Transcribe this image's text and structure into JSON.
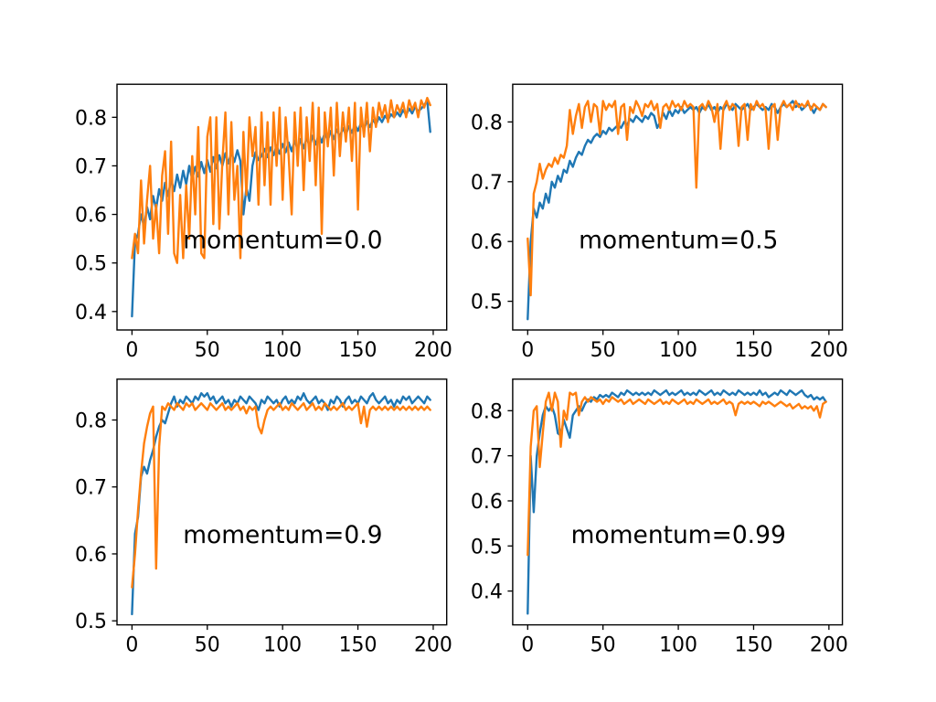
{
  "figure": {
    "background": "#ffffff",
    "axis_color": "#000000"
  },
  "chart_data": [
    {
      "type": "line",
      "annotation": "momentum=0.0",
      "xlabel": "",
      "ylabel": "",
      "xlim": [
        -9.95,
        208.95
      ],
      "ylim": [
        0.362,
        0.868
      ],
      "xticks": [
        0,
        50,
        100,
        150,
        200
      ],
      "yticks": [
        0.4,
        0.5,
        0.6,
        0.7,
        0.8
      ],
      "x_start": 0,
      "x_step": 2,
      "grid": false,
      "legend": "none",
      "series": [
        {
          "id": "line1",
          "color": "#1f77b4",
          "values": [
            0.39,
            0.545,
            0.56,
            0.6,
            0.575,
            0.615,
            0.59,
            0.638,
            0.612,
            0.652,
            0.628,
            0.665,
            0.638,
            0.672,
            0.648,
            0.682,
            0.655,
            0.69,
            0.662,
            0.7,
            0.672,
            0.698,
            0.678,
            0.708,
            0.685,
            0.712,
            0.688,
            0.718,
            0.695,
            0.722,
            0.7,
            0.726,
            0.705,
            0.728,
            0.708,
            0.732,
            0.71,
            0.6,
            0.655,
            0.628,
            0.7,
            0.728,
            0.712,
            0.72,
            0.735,
            0.718,
            0.738,
            0.722,
            0.742,
            0.725,
            0.745,
            0.728,
            0.748,
            0.73,
            0.752,
            0.733,
            0.755,
            0.736,
            0.758,
            0.74,
            0.762,
            0.744,
            0.765,
            0.748,
            0.768,
            0.752,
            0.772,
            0.755,
            0.775,
            0.76,
            0.778,
            0.764,
            0.782,
            0.768,
            0.785,
            0.772,
            0.788,
            0.775,
            0.792,
            0.78,
            0.795,
            0.785,
            0.8,
            0.79,
            0.803,
            0.795,
            0.806,
            0.8,
            0.81,
            0.802,
            0.815,
            0.805,
            0.818,
            0.808,
            0.822,
            0.812,
            0.818,
            0.825,
            0.835,
            0.77
          ]
        },
        {
          "id": "line2",
          "color": "#ff7f0e",
          "values": [
            0.51,
            0.56,
            0.52,
            0.67,
            0.54,
            0.63,
            0.7,
            0.55,
            0.62,
            0.52,
            0.68,
            0.73,
            0.56,
            0.75,
            0.52,
            0.5,
            0.64,
            0.51,
            0.66,
            0.55,
            0.72,
            0.6,
            0.78,
            0.52,
            0.51,
            0.76,
            0.8,
            0.58,
            0.8,
            0.57,
            0.71,
            0.81,
            0.6,
            0.79,
            0.63,
            0.7,
            0.51,
            0.77,
            0.64,
            0.8,
            0.72,
            0.78,
            0.62,
            0.81,
            0.66,
            0.79,
            0.62,
            0.81,
            0.7,
            0.82,
            0.63,
            0.8,
            0.72,
            0.6,
            0.81,
            0.7,
            0.82,
            0.65,
            0.8,
            0.71,
            0.83,
            0.66,
            0.82,
            0.56,
            0.81,
            0.74,
            0.82,
            0.68,
            0.83,
            0.72,
            0.81,
            0.75,
            0.82,
            0.71,
            0.83,
            0.61,
            0.82,
            0.76,
            0.83,
            0.73,
            0.82,
            0.78,
            0.83,
            0.8,
            0.825,
            0.79,
            0.835,
            0.8,
            0.825,
            0.81,
            0.83,
            0.8,
            0.835,
            0.815,
            0.83,
            0.8,
            0.835,
            0.82,
            0.84,
            0.825
          ]
        }
      ]
    },
    {
      "type": "line",
      "annotation": "momentum=0.5",
      "xlabel": "",
      "ylabel": "",
      "xlim": [
        -9.95,
        208.95
      ],
      "ylim": [
        0.452,
        0.863
      ],
      "xticks": [
        0,
        50,
        100,
        150,
        200
      ],
      "yticks": [
        0.5,
        0.6,
        0.7,
        0.8
      ],
      "x_start": 0,
      "x_step": 2,
      "grid": false,
      "legend": "none",
      "series": [
        {
          "id": "line1",
          "color": "#1f77b4",
          "values": [
            0.47,
            0.6,
            0.655,
            0.64,
            0.665,
            0.655,
            0.68,
            0.665,
            0.7,
            0.69,
            0.71,
            0.7,
            0.72,
            0.715,
            0.735,
            0.725,
            0.74,
            0.75,
            0.745,
            0.76,
            0.77,
            0.765,
            0.775,
            0.78,
            0.775,
            0.785,
            0.78,
            0.79,
            0.785,
            0.79,
            0.795,
            0.79,
            0.8,
            0.795,
            0.805,
            0.8,
            0.81,
            0.805,
            0.8,
            0.81,
            0.805,
            0.815,
            0.81,
            0.79,
            0.8,
            0.815,
            0.805,
            0.82,
            0.81,
            0.82,
            0.815,
            0.825,
            0.815,
            0.82,
            0.825,
            0.82,
            0.825,
            0.815,
            0.825,
            0.82,
            0.83,
            0.82,
            0.825,
            0.815,
            0.825,
            0.82,
            0.83,
            0.825,
            0.82,
            0.83,
            0.825,
            0.82,
            0.825,
            0.83,
            0.82,
            0.825,
            0.83,
            0.825,
            0.82,
            0.825,
            0.82,
            0.83,
            0.825,
            0.815,
            0.825,
            0.83,
            0.825,
            0.83,
            0.835,
            0.825,
            0.83,
            0.82,
            0.825,
            0.83,
            0.825,
            0.815,
            0.825,
            0.82,
            0.83,
            0.825
          ]
        },
        {
          "id": "line2",
          "color": "#ff7f0e",
          "values": [
            0.605,
            0.51,
            0.68,
            0.7,
            0.73,
            0.705,
            0.72,
            0.73,
            0.725,
            0.74,
            0.73,
            0.745,
            0.74,
            0.76,
            0.82,
            0.78,
            0.81,
            0.83,
            0.79,
            0.825,
            0.835,
            0.8,
            0.83,
            0.825,
            0.78,
            0.835,
            0.82,
            0.83,
            0.825,
            0.835,
            0.78,
            0.825,
            0.83,
            0.77,
            0.825,
            0.815,
            0.835,
            0.825,
            0.81,
            0.83,
            0.825,
            0.835,
            0.82,
            0.83,
            0.79,
            0.825,
            0.83,
            0.82,
            0.835,
            0.825,
            0.83,
            0.82,
            0.835,
            0.825,
            0.83,
            0.825,
            0.69,
            0.825,
            0.83,
            0.82,
            0.835,
            0.825,
            0.8,
            0.83,
            0.755,
            0.825,
            0.835,
            0.82,
            0.83,
            0.825,
            0.76,
            0.825,
            0.83,
            0.77,
            0.83,
            0.82,
            0.835,
            0.825,
            0.83,
            0.82,
            0.755,
            0.825,
            0.83,
            0.77,
            0.825,
            0.835,
            0.825,
            0.83,
            0.82,
            0.835,
            0.825,
            0.83,
            0.825,
            0.835,
            0.82,
            0.83,
            0.825,
            0.82,
            0.83,
            0.825
          ]
        }
      ]
    },
    {
      "type": "line",
      "annotation": "momentum=0.9",
      "xlabel": "",
      "ylabel": "",
      "xlim": [
        -9.95,
        208.95
      ],
      "ylim": [
        0.494,
        0.861
      ],
      "xticks": [
        0,
        50,
        100,
        150,
        200
      ],
      "yticks": [
        0.5,
        0.6,
        0.7,
        0.8
      ],
      "x_start": 0,
      "x_step": 2,
      "grid": false,
      "legend": "none",
      "series": [
        {
          "id": "line1",
          "color": "#1f77b4",
          "values": [
            0.51,
            0.63,
            0.655,
            0.715,
            0.73,
            0.72,
            0.74,
            0.755,
            0.775,
            0.79,
            0.8,
            0.795,
            0.81,
            0.825,
            0.835,
            0.82,
            0.83,
            0.825,
            0.835,
            0.83,
            0.825,
            0.835,
            0.83,
            0.84,
            0.835,
            0.84,
            0.83,
            0.835,
            0.825,
            0.83,
            0.835,
            0.825,
            0.83,
            0.82,
            0.83,
            0.825,
            0.835,
            0.83,
            0.825,
            0.835,
            0.83,
            0.825,
            0.815,
            0.83,
            0.825,
            0.835,
            0.83,
            0.825,
            0.83,
            0.82,
            0.83,
            0.835,
            0.825,
            0.83,
            0.825,
            0.835,
            0.83,
            0.84,
            0.83,
            0.825,
            0.83,
            0.835,
            0.825,
            0.83,
            0.825,
            0.815,
            0.83,
            0.825,
            0.835,
            0.83,
            0.82,
            0.83,
            0.835,
            0.825,
            0.83,
            0.825,
            0.835,
            0.83,
            0.825,
            0.835,
            0.84,
            0.83,
            0.825,
            0.83,
            0.835,
            0.825,
            0.83,
            0.82,
            0.83,
            0.825,
            0.835,
            0.83,
            0.835,
            0.825,
            0.83,
            0.835,
            0.83,
            0.825,
            0.835,
            0.83
          ]
        },
        {
          "id": "line2",
          "color": "#ff7f0e",
          "values": [
            0.55,
            0.6,
            0.665,
            0.72,
            0.765,
            0.79,
            0.81,
            0.82,
            0.578,
            0.76,
            0.82,
            0.815,
            0.825,
            0.82,
            0.815,
            0.825,
            0.82,
            0.815,
            0.825,
            0.82,
            0.825,
            0.815,
            0.82,
            0.825,
            0.82,
            0.815,
            0.825,
            0.82,
            0.815,
            0.82,
            0.825,
            0.815,
            0.82,
            0.815,
            0.82,
            0.825,
            0.815,
            0.82,
            0.81,
            0.82,
            0.815,
            0.82,
            0.79,
            0.78,
            0.8,
            0.815,
            0.82,
            0.815,
            0.82,
            0.825,
            0.815,
            0.82,
            0.815,
            0.825,
            0.82,
            0.815,
            0.82,
            0.825,
            0.815,
            0.82,
            0.825,
            0.815,
            0.82,
            0.815,
            0.825,
            0.82,
            0.815,
            0.82,
            0.815,
            0.82,
            0.825,
            0.815,
            0.82,
            0.815,
            0.82,
            0.825,
            0.795,
            0.82,
            0.79,
            0.815,
            0.82,
            0.815,
            0.82,
            0.815,
            0.82,
            0.815,
            0.82,
            0.815,
            0.82,
            0.815,
            0.82,
            0.815,
            0.82,
            0.815,
            0.82,
            0.815,
            0.82,
            0.815,
            0.82,
            0.815
          ]
        }
      ]
    },
    {
      "type": "line",
      "annotation": "momentum=0.99",
      "xlabel": "",
      "ylabel": "",
      "xlim": [
        -9.95,
        208.95
      ],
      "ylim": [
        0.325,
        0.87
      ],
      "xticks": [
        0,
        50,
        100,
        150,
        200
      ],
      "yticks": [
        0.4,
        0.5,
        0.6,
        0.7,
        0.8
      ],
      "x_start": 0,
      "x_step": 2,
      "grid": false,
      "legend": "none",
      "series": [
        {
          "id": "line1",
          "color": "#1f77b4",
          "values": [
            0.35,
            0.7,
            0.575,
            0.7,
            0.75,
            0.79,
            0.81,
            0.8,
            0.81,
            0.79,
            0.75,
            0.745,
            0.78,
            0.76,
            0.74,
            0.79,
            0.8,
            0.81,
            0.8,
            0.815,
            0.825,
            0.82,
            0.83,
            0.825,
            0.835,
            0.83,
            0.835,
            0.83,
            0.84,
            0.835,
            0.83,
            0.84,
            0.835,
            0.845,
            0.84,
            0.835,
            0.84,
            0.835,
            0.84,
            0.835,
            0.84,
            0.835,
            0.845,
            0.84,
            0.835,
            0.84,
            0.845,
            0.835,
            0.84,
            0.835,
            0.84,
            0.845,
            0.835,
            0.84,
            0.835,
            0.84,
            0.835,
            0.845,
            0.84,
            0.835,
            0.84,
            0.845,
            0.835,
            0.84,
            0.835,
            0.845,
            0.84,
            0.835,
            0.84,
            0.835,
            0.845,
            0.84,
            0.835,
            0.84,
            0.835,
            0.84,
            0.835,
            0.845,
            0.835,
            0.84,
            0.83,
            0.835,
            0.84,
            0.835,
            0.845,
            0.84,
            0.835,
            0.845,
            0.84,
            0.835,
            0.84,
            0.845,
            0.835,
            0.83,
            0.835,
            0.825,
            0.83,
            0.825,
            0.83,
            0.82
          ]
        },
        {
          "id": "line2",
          "color": "#ff7f0e",
          "values": [
            0.48,
            0.72,
            0.8,
            0.81,
            0.675,
            0.75,
            0.82,
            0.84,
            0.8,
            0.84,
            0.82,
            0.72,
            0.8,
            0.78,
            0.84,
            0.835,
            0.84,
            0.79,
            0.82,
            0.83,
            0.82,
            0.83,
            0.825,
            0.82,
            0.825,
            0.815,
            0.825,
            0.82,
            0.83,
            0.825,
            0.82,
            0.825,
            0.815,
            0.82,
            0.825,
            0.815,
            0.82,
            0.825,
            0.82,
            0.815,
            0.825,
            0.82,
            0.815,
            0.82,
            0.825,
            0.815,
            0.82,
            0.815,
            0.825,
            0.82,
            0.815,
            0.82,
            0.825,
            0.815,
            0.82,
            0.815,
            0.825,
            0.82,
            0.815,
            0.82,
            0.825,
            0.815,
            0.82,
            0.815,
            0.82,
            0.825,
            0.815,
            0.82,
            0.815,
            0.79,
            0.815,
            0.82,
            0.815,
            0.82,
            0.815,
            0.82,
            0.815,
            0.81,
            0.82,
            0.815,
            0.82,
            0.815,
            0.81,
            0.815,
            0.82,
            0.815,
            0.81,
            0.815,
            0.805,
            0.81,
            0.815,
            0.805,
            0.81,
            0.805,
            0.81,
            0.8,
            0.81,
            0.785,
            0.815,
            0.82
          ]
        }
      ]
    }
  ]
}
